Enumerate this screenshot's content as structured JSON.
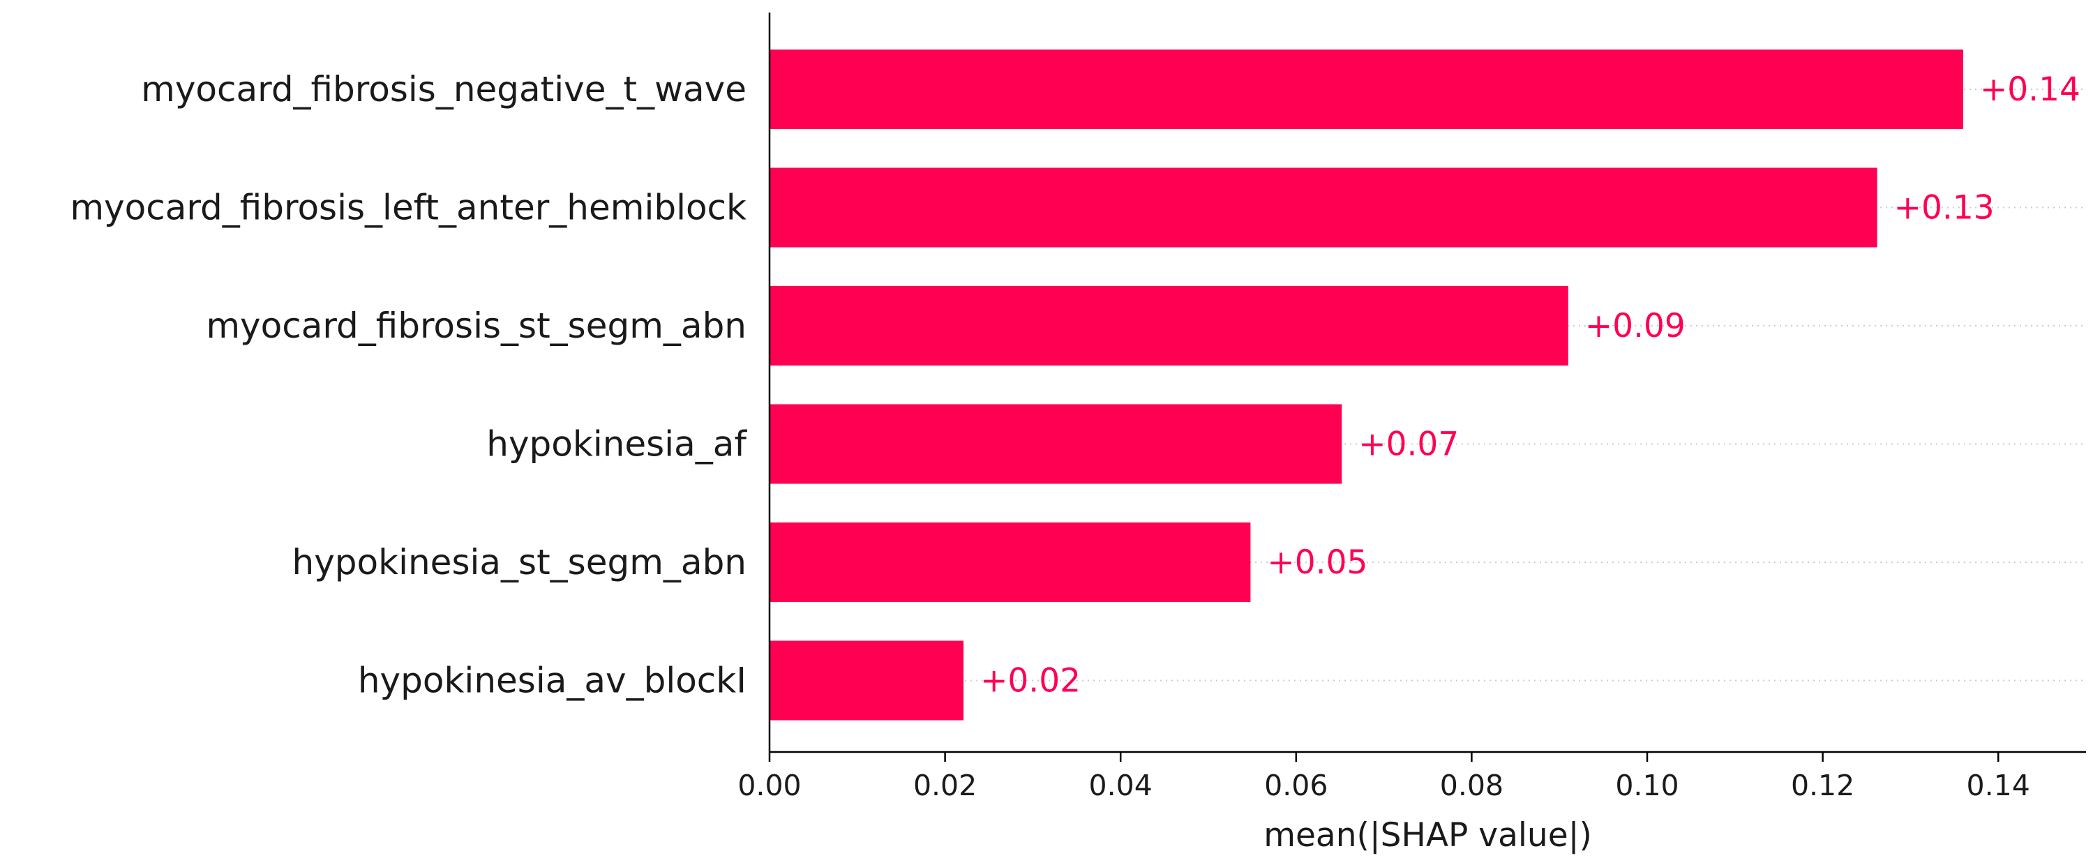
{
  "chart_data": {
    "type": "bar",
    "orientation": "horizontal",
    "categories": [
      "myocard_fibrosis_negative_t_wave",
      "myocard_fibrosis_left_anter_hemiblock",
      "myocard_fibrosis_st_segm_abn",
      "hypokinesia_af",
      "hypokinesia_st_segm_abn",
      "hypokinesia_av_blockI"
    ],
    "values": [
      0.136,
      0.1262,
      0.091,
      0.0652,
      0.0548,
      0.0221
    ],
    "value_labels": [
      "+0.14",
      "+0.13",
      "+0.09",
      "+0.07",
      "+0.05",
      "+0.02"
    ],
    "xlabel": "mean(|SHAP value|)",
    "ylabel": "",
    "xlim": [
      0,
      0.15
    ],
    "x_ticks": [
      "0.00",
      "0.02",
      "0.04",
      "0.06",
      "0.08",
      "0.10",
      "0.12",
      "0.14"
    ],
    "x_tick_values": [
      0,
      0.02,
      0.04,
      0.06,
      0.08,
      0.1,
      0.12,
      0.14
    ],
    "grid": false,
    "legend": "none",
    "colors": {
      "bar": "#ff0052",
      "label": "#ff0052",
      "axis": "#000000",
      "guide": "#cccccc"
    }
  }
}
